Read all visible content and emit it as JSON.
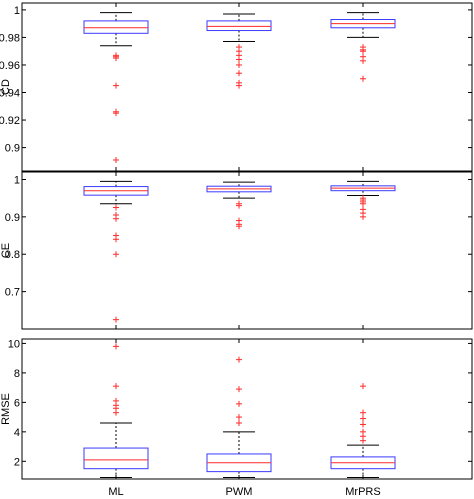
{
  "chart_data": [
    {
      "type": "box",
      "ylabel": "CD",
      "ylim": [
        0.883,
        1.005
      ],
      "yticks": [
        0.9,
        0.92,
        0.94,
        0.96,
        0.98,
        1
      ],
      "ytick_labels": [
        "0.9",
        "0.92",
        "0.94",
        "0.96",
        "0.98",
        "1"
      ],
      "categories": [
        "ML",
        "PWM",
        "MrPRS"
      ],
      "show_x_tick_labels": false,
      "boxes": [
        {
          "name": "ML",
          "whisker_low": 0.974,
          "q1": 0.983,
          "median": 0.987,
          "q3": 0.992,
          "whisker_high": 0.998,
          "outliers": [
            0.967,
            0.966,
            0.965,
            0.945,
            0.926,
            0.925,
            0.891
          ]
        },
        {
          "name": "PWM",
          "whisker_low": 0.977,
          "q1": 0.985,
          "median": 0.988,
          "q3": 0.992,
          "whisker_high": 0.997,
          "outliers": [
            0.973,
            0.97,
            0.967,
            0.964,
            0.96,
            0.954,
            0.947,
            0.945
          ]
        },
        {
          "name": "MrPRS",
          "whisker_low": 0.98,
          "q1": 0.987,
          "median": 0.99,
          "q3": 0.993,
          "whisker_high": 0.998,
          "outliers": [
            0.973,
            0.971,
            0.97,
            0.966,
            0.963,
            0.95
          ]
        }
      ]
    },
    {
      "type": "box",
      "ylabel": "CE",
      "ylim": [
        0.6,
        1.02
      ],
      "yticks": [
        0.7,
        0.8,
        0.9,
        1
      ],
      "ytick_labels": [
        "0.7",
        "0.8",
        "0.9",
        "1"
      ],
      "categories": [
        "ML",
        "PWM",
        "MrPRS"
      ],
      "show_x_tick_labels": false,
      "boxes": [
        {
          "name": "ML",
          "whisker_low": 0.935,
          "q1": 0.958,
          "median": 0.97,
          "q3": 0.981,
          "whisker_high": 0.995,
          "outliers": [
            0.925,
            0.905,
            0.895,
            0.85,
            0.84,
            0.8,
            0.625
          ]
        },
        {
          "name": "PWM",
          "whisker_low": 0.95,
          "q1": 0.967,
          "median": 0.975,
          "q3": 0.982,
          "whisker_high": 0.993,
          "outliers": [
            0.935,
            0.93,
            0.89,
            0.88,
            0.875
          ]
        },
        {
          "name": "MrPRS",
          "whisker_low": 0.957,
          "q1": 0.97,
          "median": 0.977,
          "q3": 0.983,
          "whisker_high": 0.995,
          "outliers": [
            0.95,
            0.945,
            0.94,
            0.935,
            0.92,
            0.91,
            0.9
          ]
        }
      ]
    },
    {
      "type": "box",
      "ylabel": "RMSE",
      "ylim": [
        0.8,
        10.3
      ],
      "yticks": [
        2,
        4,
        6,
        8,
        10
      ],
      "ytick_labels": [
        "2",
        "4",
        "6",
        "8",
        "10"
      ],
      "categories": [
        "ML",
        "PWM",
        "MrPRS"
      ],
      "show_x_tick_labels": true,
      "boxes": [
        {
          "name": "ML",
          "whisker_low": 0.9,
          "q1": 1.5,
          "median": 2.1,
          "q3": 2.9,
          "whisker_high": 4.6,
          "outliers": [
            5.3,
            5.6,
            5.8,
            6.1,
            7.1,
            9.8
          ]
        },
        {
          "name": "PWM",
          "whisker_low": 0.9,
          "q1": 1.3,
          "median": 1.9,
          "q3": 2.5,
          "whisker_high": 4.0,
          "outliers": [
            4.6,
            5.0,
            5.9,
            6.9,
            8.9
          ]
        },
        {
          "name": "MrPRS",
          "whisker_low": 0.9,
          "q1": 1.5,
          "median": 1.9,
          "q3": 2.3,
          "whisker_high": 3.1,
          "outliers": [
            3.4,
            3.7,
            4.0,
            4.5,
            4.9,
            5.3,
            7.1
          ]
        }
      ]
    }
  ]
}
